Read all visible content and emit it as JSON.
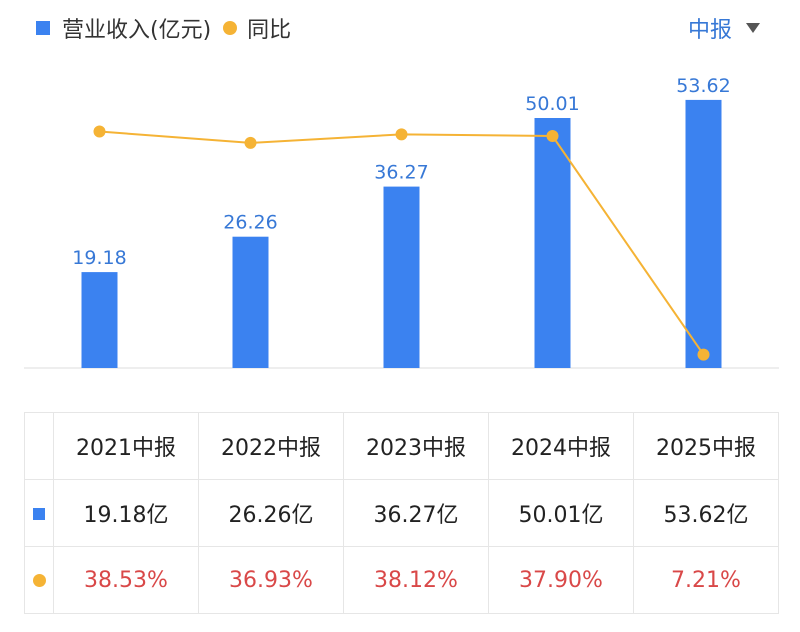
{
  "legend": {
    "revenue_label": "营业收入(亿元)",
    "yoy_label": "同比"
  },
  "period_selector": {
    "value": "中报"
  },
  "colors": {
    "bar": "#3b82f0",
    "line": "#f5b335",
    "value_label": "#3778d6",
    "yoy_text": "#d94848"
  },
  "chart_data": {
    "type": "bar",
    "categories": [
      "2021中报",
      "2022中报",
      "2023中报",
      "2024中报",
      "2025中报"
    ],
    "series": [
      {
        "name": "营业收入(亿元)",
        "type": "bar",
        "values": [
          19.18,
          26.26,
          36.27,
          50.01,
          53.62
        ],
        "labels": [
          "19.18",
          "26.26",
          "36.27",
          "50.01",
          "53.62"
        ]
      },
      {
        "name": "同比",
        "type": "line",
        "values": [
          38.53,
          36.93,
          38.12,
          37.9,
          7.21
        ],
        "unit": "%"
      }
    ],
    "grid": false,
    "legend_position": "top-left"
  },
  "table": {
    "headers": [
      "2021中报",
      "2022中报",
      "2023中报",
      "2024中报",
      "2025中报"
    ],
    "revenue_row": [
      "19.18亿",
      "26.26亿",
      "36.27亿",
      "50.01亿",
      "53.62亿"
    ],
    "yoy_row": [
      "38.53%",
      "36.93%",
      "38.12%",
      "37.90%",
      "7.21%"
    ]
  }
}
